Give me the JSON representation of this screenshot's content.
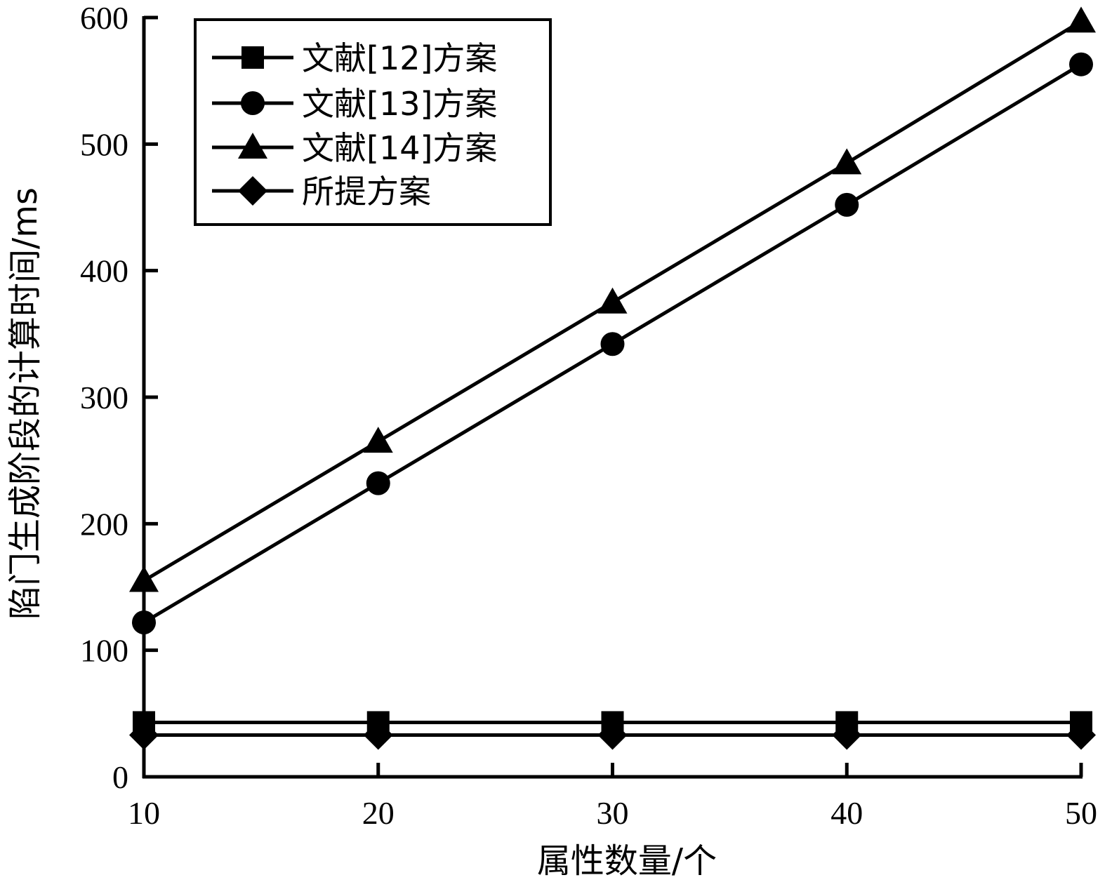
{
  "chart_data": {
    "type": "line",
    "x": [
      10,
      20,
      30,
      40,
      50
    ],
    "xlabel": "属性数量/个",
    "ylabel": "陷门生成阶段的计算时间/ms",
    "xlim": [
      10,
      50
    ],
    "ylim": [
      0,
      600
    ],
    "xticks": [
      10,
      20,
      30,
      40,
      50
    ],
    "yticks": [
      0,
      100,
      200,
      300,
      400,
      500,
      600
    ],
    "grid": false,
    "legend_position": "top-left",
    "series": [
      {
        "name": "文献[12]方案",
        "marker": "square",
        "values": [
          43,
          43,
          43,
          43,
          43
        ]
      },
      {
        "name": "文献[13]方案",
        "marker": "circle",
        "values": [
          122,
          232,
          342,
          452,
          563
        ]
      },
      {
        "name": "文献[14]方案",
        "marker": "triangle",
        "values": [
          155,
          265,
          375,
          485,
          597
        ]
      },
      {
        "name": "所提方案",
        "marker": "diamond",
        "values": [
          33,
          33,
          33,
          33,
          33
        ]
      }
    ],
    "colors": {
      "line": "#000000",
      "background": "#ffffff"
    }
  }
}
